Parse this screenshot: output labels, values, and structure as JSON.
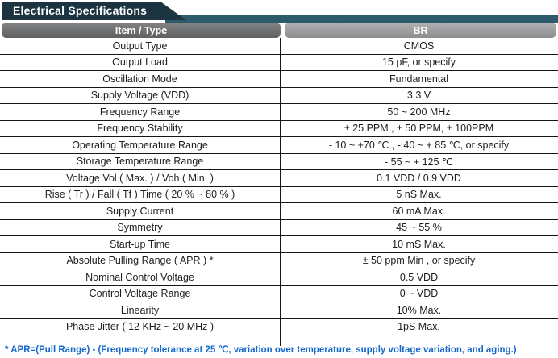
{
  "title": "Electrical Specifications",
  "table": {
    "headers": {
      "item": "Item / Type",
      "type": "BR"
    },
    "rows": [
      {
        "item": "Output Type",
        "value": "CMOS"
      },
      {
        "item": "Output Load",
        "value": "15 pF, or specify"
      },
      {
        "item": "Oscillation Mode",
        "value": "Fundamental"
      },
      {
        "item": "Supply Voltage (VDD)",
        "value": "3.3 V"
      },
      {
        "item": "Frequency Range",
        "value": "50 ~ 200 MHz"
      },
      {
        "item": "Frequency Stability",
        "value": "± 25 PPM , ± 50 PPM, ± 100PPM"
      },
      {
        "item": "Operating Temperature Range",
        "value": "- 10 ~ +70 ℃ , - 40 ~ + 85 ℃, or specify"
      },
      {
        "item": "Storage Temperature Range",
        "value": "- 55 ~ + 125 ℃"
      },
      {
        "item": "Voltage Vol ( Max. ) / Voh ( Min. )",
        "value": "0.1 VDD / 0.9 VDD"
      },
      {
        "item": "Rise ( Tr ) / Fall ( Tf ) Time ( 20 % ~ 80 % )",
        "value": "5 nS Max."
      },
      {
        "item": "Supply Current",
        "value": "60 mA Max."
      },
      {
        "item": "Symmetry",
        "value": "45 ~ 55 %"
      },
      {
        "item": "Start-up Time",
        "value": "10 mS Max."
      },
      {
        "item": "Absolute Pulling Range ( APR ) *",
        "value": "± 50 ppm Min , or specify"
      },
      {
        "item": "Nominal Control Voltage",
        "value": "0.5 VDD"
      },
      {
        "item": "Control Voltage Range",
        "value": "0 ~ VDD"
      },
      {
        "item": "Linearity",
        "value": "10% Max."
      },
      {
        "item": "Phase Jitter ( 12 KHz ~ 20 MHz )",
        "value": "1pS Max."
      }
    ]
  },
  "footnote": "* APR=(Pull Range) - (Frequency tolerance at 25 ℃, variation over temperature, supply voltage variation, and aging.)",
  "colors": {
    "title_bg": "#1c3340",
    "accent_bar": "#2e5b6b",
    "header_left_bg": "#6c6d6f",
    "header_right_bg": "#a0a1a3",
    "border": "#161616",
    "footnote_blue": "#1468cb"
  }
}
